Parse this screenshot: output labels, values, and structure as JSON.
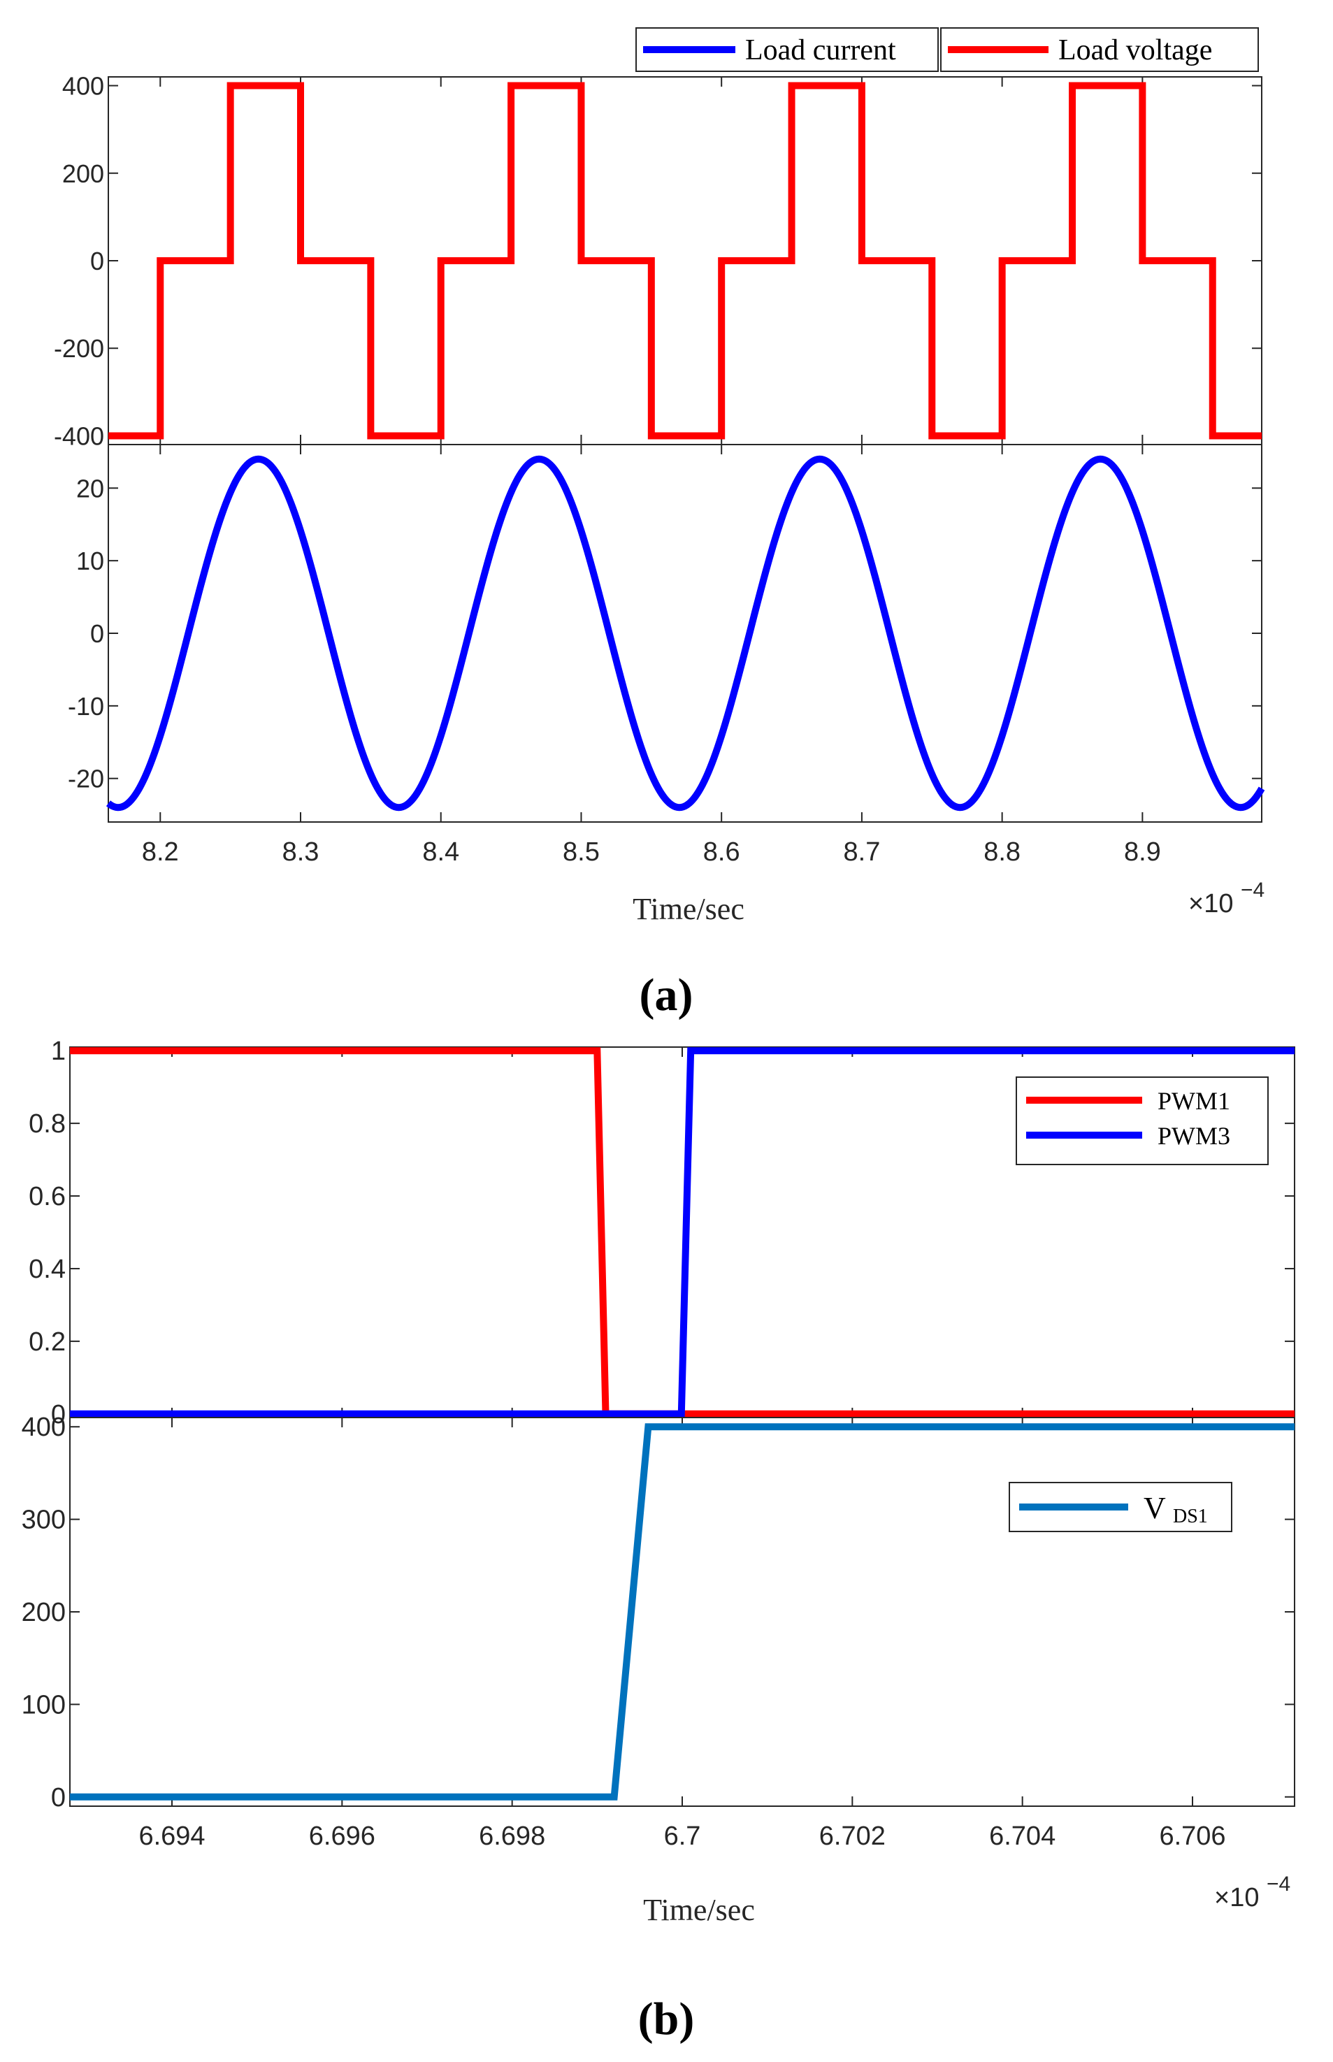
{
  "figure": {
    "panel_a_label": "(a)",
    "panel_b_label": "(b)",
    "colors": {
      "red": "#ff0000",
      "blue": "#0000ff",
      "steel_blue": "#0072bd",
      "axis": "#262626"
    }
  },
  "chart_data": [
    {
      "id": "a-top",
      "type": "line",
      "panel": "(a)",
      "xlabel": "",
      "ylabel": "",
      "xlim": [
        0.0008163,
        0.0008985
      ],
      "ylim": [
        -420,
        420
      ],
      "yticks": [
        400,
        200,
        0,
        -200,
        -400
      ],
      "ytick_labels": [
        "400",
        "200",
        "0",
        "-200",
        "-400"
      ],
      "legend": {
        "placement": "top",
        "entries": [
          "Load current",
          "Load voltage"
        ]
      },
      "series": [
        {
          "name": "Load voltage",
          "color": "#ff0000",
          "x": [
            0.0008163,
            0.00082,
            0.00082,
            0.000825,
            0.000825,
            0.00083,
            0.00083,
            0.000835,
            0.000835,
            0.00084,
            0.00084,
            0.000845,
            0.000845,
            0.00085,
            0.00085,
            0.000855,
            0.000855,
            0.00086,
            0.00086,
            0.000865,
            0.000865,
            0.00087,
            0.00087,
            0.000875,
            0.000875,
            0.00088,
            0.00088,
            0.000885,
            0.000885,
            0.00089,
            0.00089,
            0.000895,
            0.000895,
            0.0008985
          ],
          "y": [
            -400,
            -400,
            0,
            0,
            400,
            400,
            0,
            0,
            -400,
            -400,
            0,
            0,
            400,
            400,
            0,
            0,
            -400,
            -400,
            0,
            0,
            400,
            400,
            0,
            0,
            -400,
            -400,
            0,
            0,
            400,
            400,
            0,
            0,
            -400,
            -400
          ]
        }
      ]
    },
    {
      "id": "a-bottom",
      "type": "line",
      "panel": "(a)",
      "xlabel": "Time/sec",
      "x_multiplier": "×10",
      "x_exponent": "−4",
      "ylabel": "",
      "xlim": [
        0.0008163,
        0.0008985
      ],
      "ylim": [
        -26,
        26
      ],
      "xticks": [
        0.00082,
        0.00083,
        0.00084,
        0.00085,
        0.00086,
        0.00087,
        0.00088,
        0.00089
      ],
      "xtick_labels": [
        "8.2",
        "8.3",
        "8.4",
        "8.5",
        "8.6",
        "8.7",
        "8.8",
        "8.9"
      ],
      "yticks": [
        20,
        10,
        0,
        -10,
        -20
      ],
      "ytick_labels": [
        "20",
        "10",
        "0",
        "-10",
        "-20"
      ],
      "series": [
        {
          "name": "Load current",
          "color": "#0000ff",
          "function": "sine",
          "amplitude": 24,
          "period": 2e-05,
          "peak_at": 0.000827
        }
      ]
    },
    {
      "id": "b-top",
      "type": "line",
      "panel": "(b)",
      "xlabel": "",
      "ylabel": "",
      "xlim": [
        0.00066928,
        0.00067072
      ],
      "ylim": [
        -0.01,
        1.01
      ],
      "yticks": [
        1,
        0.8,
        0.6,
        0.4,
        0.2,
        0
      ],
      "ytick_labels": [
        "1",
        "0.8",
        "0.6",
        "0.4",
        "0.2",
        "0"
      ],
      "legend": {
        "placement": "top-right",
        "entries": [
          "PWM1",
          "PWM3"
        ]
      },
      "series": [
        {
          "name": "PWM1",
          "color": "#ff0000",
          "x": [
            0.00066928,
            0.0006699,
            0.00066991,
            0.00067072
          ],
          "y": [
            1,
            1,
            0,
            0
          ]
        },
        {
          "name": "PWM3",
          "color": "#0000ff",
          "x": [
            0.00066928,
            0.000669999,
            0.00067001,
            0.00067072
          ],
          "y": [
            0,
            0,
            1,
            1
          ]
        }
      ]
    },
    {
      "id": "b-bottom",
      "type": "line",
      "panel": "(b)",
      "xlabel": "Time/sec",
      "x_multiplier": "×10",
      "x_exponent": "−4",
      "ylabel": "",
      "xlim": [
        0.00066928,
        0.00067072
      ],
      "ylim": [
        -10,
        410
      ],
      "xticks": [
        0.0006694,
        0.0006696,
        0.0006698,
        0.00067,
        0.0006702,
        0.0006704,
        0.0006706
      ],
      "xtick_labels": [
        "6.694",
        "6.696",
        "6.698",
        "6.7",
        "6.702",
        "6.704",
        "6.706"
      ],
      "yticks": [
        400,
        300,
        200,
        100,
        0
      ],
      "ytick_labels": [
        "400",
        "300",
        "200",
        "100",
        "0"
      ],
      "legend": {
        "placement": "top-right",
        "entries": [
          "V",
          "DS1"
        ]
      },
      "series": [
        {
          "name": "VDS1",
          "color": "#0072bd",
          "x": [
            0.00066928,
            0.00066992,
            0.00066996,
            0.00067072
          ],
          "y": [
            0,
            0,
            400,
            400
          ]
        }
      ]
    }
  ]
}
